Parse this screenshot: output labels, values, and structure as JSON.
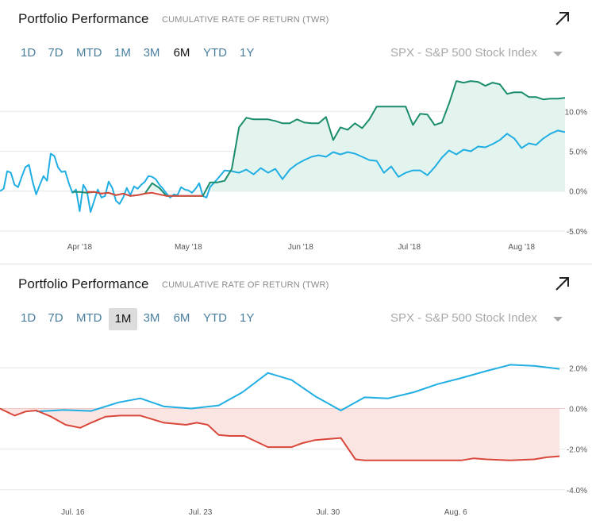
{
  "colors": {
    "portfolio_line": "#1b8c6c",
    "portfolio_area": "#e3f4ee",
    "benchmark_line": "#21aee3",
    "negative_line": "#d9473b",
    "negative_area": "#fbe5e3",
    "grid": "#e6e6e6"
  },
  "icons": {
    "expand": "arrow-up-right-icon",
    "dropdown": "caret-down-icon"
  },
  "chart_data": [
    {
      "type": "line",
      "title": "Portfolio Performance",
      "subtitle": "CUMULATIVE RATE OF RETURN (TWR)",
      "range_buttons": [
        "1D",
        "7D",
        "MTD",
        "1M",
        "3M",
        "6M",
        "YTD",
        "1Y"
      ],
      "selected_range": "6M",
      "benchmark_selector": "SPX - S&P 500 Stock Index",
      "x_labels": [
        "Apr '18",
        "May '18",
        "Jun '18",
        "Jul '18",
        "Aug '18"
      ],
      "x_label_days": [
        22,
        52,
        83,
        113,
        144
      ],
      "y_ticks": [
        10.0,
        5.0,
        0.0,
        -5.0
      ],
      "y_tick_labels": [
        "10.0%",
        "5.0%",
        "0.0%",
        "-5.0%"
      ],
      "ylim": [
        -5.5,
        16
      ],
      "xlim": [
        0,
        156
      ],
      "grid": true,
      "series": [
        {
          "role": "benchmark",
          "x": [
            0,
            1,
            2,
            3,
            4,
            5,
            6,
            7,
            8,
            9,
            10,
            11,
            12,
            13,
            14,
            15,
            16,
            17,
            18,
            19,
            20,
            21,
            22,
            23,
            24,
            25,
            26,
            27,
            28,
            29,
            30,
            31,
            32,
            33,
            34,
            35,
            36,
            37,
            38,
            39,
            40,
            41,
            42,
            43,
            44,
            45,
            46,
            47,
            48,
            49,
            50,
            51,
            52,
            53,
            54,
            55,
            56,
            57,
            58,
            60,
            62,
            64,
            66,
            68,
            70,
            72,
            74,
            76,
            78,
            80,
            82,
            84,
            86,
            88,
            90,
            92,
            94,
            96,
            98,
            100,
            102,
            104,
            106,
            108,
            110,
            112,
            114,
            116,
            118,
            120,
            122,
            124,
            126,
            128,
            130,
            132,
            134,
            136,
            138,
            140,
            142,
            144,
            146,
            148,
            150,
            152,
            154,
            156
          ],
          "y": [
            0.0,
            0.3,
            2.5,
            2.3,
            0.8,
            0.5,
            1.8,
            3.0,
            3.3,
            1.2,
            -0.4,
            0.8,
            1.9,
            1.3,
            4.7,
            4.4,
            3.0,
            2.4,
            2.5,
            1.0,
            -0.2,
            0.2,
            -2.5,
            0.8,
            0.0,
            -2.6,
            -1.2,
            0.2,
            -0.8,
            -0.6,
            1.2,
            0.4,
            -1.2,
            -1.6,
            -0.8,
            0.4,
            -0.5,
            0.6,
            0.3,
            0.8,
            1.2,
            1.9,
            1.8,
            1.5,
            0.8,
            0.3,
            -0.3,
            -0.8,
            -0.4,
            -0.5,
            0.5,
            0.2,
            0.1,
            -0.2,
            0.3,
            1.0,
            -0.6,
            -0.8,
            0.5,
            1.5,
            2.6,
            2.5,
            2.3,
            2.7,
            2.1,
            2.9,
            2.3,
            2.8,
            1.5,
            2.7,
            3.4,
            3.9,
            4.3,
            4.5,
            4.3,
            4.9,
            4.6,
            4.9,
            4.7,
            4.3,
            3.9,
            3.8,
            2.3,
            3.1,
            1.8,
            2.3,
            2.6,
            2.6,
            2.0,
            3.0,
            4.2,
            5.1,
            4.6,
            5.2,
            5.0,
            5.6,
            5.5,
            5.9,
            6.4,
            7.2,
            6.6,
            5.4,
            6.0,
            5.8,
            6.6,
            7.2,
            7.6,
            7.4
          ]
        },
        {
          "role": "portfolio",
          "x": [
            20,
            22,
            24,
            26,
            28,
            30,
            32,
            34,
            36,
            38,
            40,
            42,
            44,
            46,
            48,
            50,
            52,
            54,
            56,
            58,
            60,
            62,
            64,
            66,
            68,
            70,
            72,
            74,
            76,
            78,
            80,
            82,
            84,
            86,
            88,
            90,
            92,
            94,
            96,
            98,
            100,
            102,
            104,
            106,
            108,
            110,
            112,
            114,
            116,
            118,
            120,
            122,
            124,
            126,
            128,
            130,
            132,
            134,
            136,
            138,
            140,
            142,
            144,
            146,
            148,
            150,
            152,
            154,
            156
          ],
          "y": [
            -0.1,
            -0.1,
            -0.2,
            -0.1,
            -0.3,
            -0.2,
            -0.5,
            -0.3,
            -0.6,
            -0.5,
            -0.3,
            1.0,
            0.4,
            -0.6,
            -0.6,
            -0.6,
            -0.6,
            -0.6,
            -0.6,
            1.1,
            1.1,
            1.3,
            2.8,
            8.0,
            9.2,
            9.0,
            9.0,
            9.0,
            8.8,
            8.5,
            8.5,
            9.0,
            8.6,
            8.5,
            8.5,
            9.3,
            6.4,
            8.0,
            7.7,
            8.5,
            7.9,
            9.0,
            10.6,
            10.6,
            10.6,
            10.6,
            10.6,
            8.3,
            9.7,
            9.6,
            8.3,
            8.6,
            11.0,
            13.8,
            13.6,
            13.8,
            13.7,
            13.2,
            13.6,
            13.4,
            12.2,
            12.4,
            12.4,
            11.8,
            11.8,
            11.5,
            11.6,
            11.6,
            11.7
          ]
        }
      ],
      "negative_segment": {
        "x": [
          24,
          26,
          28,
          30,
          32,
          34,
          36,
          38,
          40,
          42,
          44,
          46,
          48,
          50,
          52,
          54,
          56
        ],
        "y": [
          -0.1,
          -0.1,
          -0.3,
          -0.2,
          -0.5,
          -0.3,
          -0.6,
          -0.5,
          -0.3,
          -0.2,
          -0.4,
          -0.6,
          -0.6,
          -0.6,
          -0.6,
          -0.6,
          -0.6
        ]
      }
    },
    {
      "type": "line",
      "title": "Portfolio Performance",
      "subtitle": "CUMULATIVE RATE OF RETURN (TWR)",
      "range_buttons": [
        "1D",
        "7D",
        "MTD",
        "1M",
        "3M",
        "6M",
        "YTD",
        "1Y"
      ],
      "selected_range": "1M",
      "benchmark_selector": "SPX - S&P 500 Stock Index",
      "x_labels": [
        "Jul. 16",
        "Jul. 23",
        "Jul. 30",
        "Aug. 6"
      ],
      "x_label_days": [
        4,
        11,
        18,
        25
      ],
      "y_ticks": [
        2.0,
        0.0,
        -2.0,
        -4.0
      ],
      "y_tick_labels": [
        "2.0%",
        "0.0%",
        "-2.0%",
        "-4.0%"
      ],
      "ylim": [
        -4.2,
        3.3
      ],
      "xlim": [
        0,
        31
      ],
      "grid": true,
      "series": [
        {
          "role": "benchmark",
          "x": [
            2,
            3.5,
            5,
            6.5,
            7.7,
            9,
            10.5,
            12,
            13.3,
            14.7,
            16,
            17.3,
            18.7,
            20,
            21.3,
            22.7,
            24,
            25.3,
            26.7,
            28,
            29.3,
            30.7
          ],
          "y": [
            -0.15,
            -0.07,
            -0.12,
            0.3,
            0.5,
            0.1,
            0.0,
            0.15,
            0.8,
            1.75,
            1.4,
            0.6,
            -0.1,
            0.55,
            0.5,
            0.8,
            1.2,
            1.5,
            1.85,
            2.15,
            2.1,
            1.95
          ]
        },
        {
          "role": "portfolio",
          "x": [
            0,
            0.8,
            1.4,
            2.0,
            2.8,
            3.6,
            4.4,
            5.0,
            5.8,
            6.6,
            7.7,
            9.0,
            10.2,
            10.8,
            11.4,
            12.0,
            12.6,
            13.4,
            14.7,
            15.4,
            16.0,
            16.6,
            17.3,
            18.0,
            18.7,
            19.5,
            20.0,
            20.5,
            21.3,
            22.3,
            24.0,
            25.3,
            26.0,
            26.7,
            28.0,
            29.3,
            30.0,
            30.7
          ],
          "y": [
            0.0,
            -0.35,
            -0.15,
            -0.1,
            -0.4,
            -0.8,
            -0.95,
            -0.7,
            -0.4,
            -0.35,
            -0.35,
            -0.7,
            -0.8,
            -0.7,
            -0.8,
            -1.3,
            -1.35,
            -1.35,
            -1.9,
            -1.9,
            -1.9,
            -1.7,
            -1.55,
            -1.5,
            -1.45,
            -2.5,
            -2.55,
            -2.55,
            -2.55,
            -2.55,
            -2.55,
            -2.55,
            -2.45,
            -2.5,
            -2.55,
            -2.5,
            -2.4,
            -2.35
          ]
        }
      ]
    }
  ]
}
